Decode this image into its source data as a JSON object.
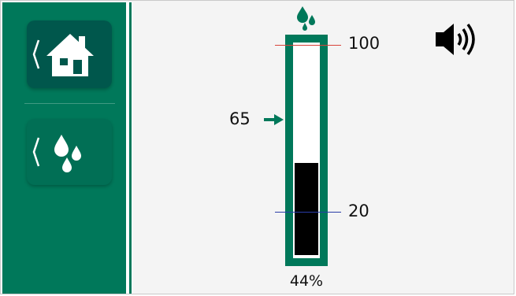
{
  "sidebar": {
    "items": [
      {
        "id": "home",
        "icon": "house-icon"
      },
      {
        "id": "water",
        "icon": "water-drops-icon"
      }
    ]
  },
  "tank": {
    "max_label": "100",
    "min_label": "20",
    "setpoint_label": "65",
    "level_percent_label": "44%",
    "level_fraction": 0.44
  },
  "colors": {
    "brand_green": "#00785a",
    "dark_green": "#00574c",
    "max_line": "#d8423a",
    "min_line": "#2a3ca8",
    "fill": "#000000"
  },
  "icons": {
    "top": "water-drop-icon",
    "speaker": "speaker-volume-icon",
    "setpoint_arrow": "arrow-right-icon"
  }
}
